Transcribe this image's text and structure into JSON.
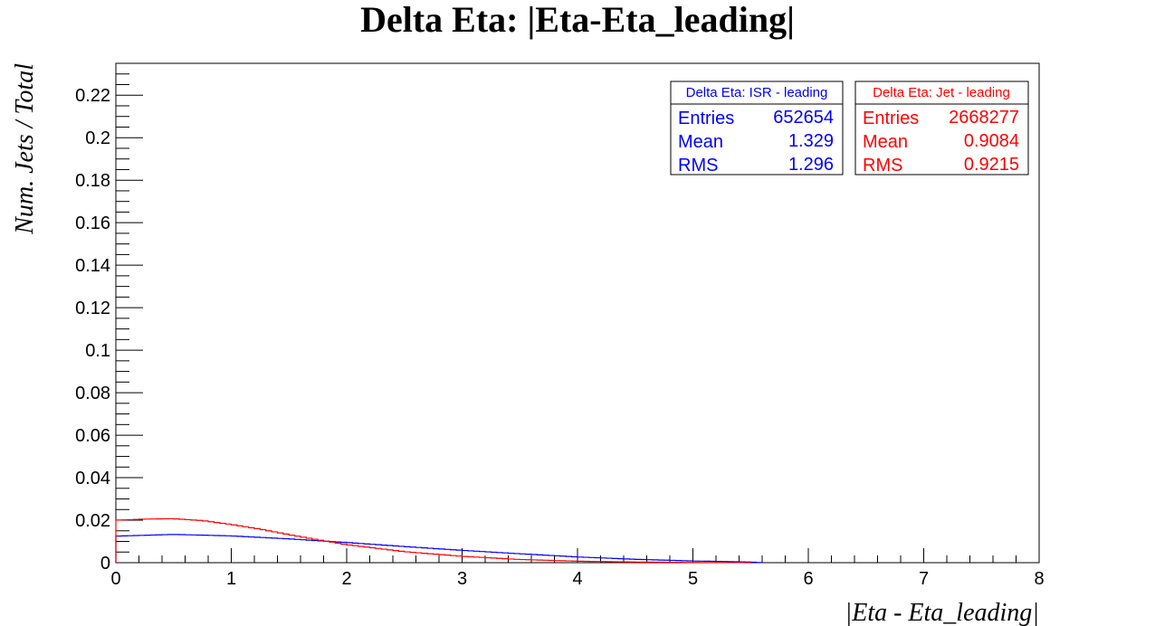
{
  "chart_data": {
    "type": "line",
    "title": "Delta Eta: |Eta-Eta_leading|",
    "xlabel": "|Eta - Eta_leading|",
    "ylabel": "Num. Jets / Total",
    "xlim": [
      0,
      8
    ],
    "ylim": [
      0,
      0.235
    ],
    "x_ticks": [
      "0",
      "1",
      "2",
      "3",
      "4",
      "5",
      "6",
      "7",
      "8"
    ],
    "y_ticks": [
      "0",
      "0.02",
      "0.04",
      "0.06",
      "0.08",
      "0.1",
      "0.12",
      "0.14",
      "0.16",
      "0.18",
      "0.2",
      "0.22"
    ],
    "bin_width": 0.05,
    "grid": false,
    "series": [
      {
        "name": "Delta Eta: ISR - leading",
        "color": "#0000ff",
        "entries_label": "Entries",
        "entries": "652654",
        "mean_label": "Mean",
        "mean": "1.329",
        "rms_label": "RMS",
        "rms": "1.296",
        "x": [
          0,
          0.5,
          1,
          1.5,
          2,
          2.5,
          3,
          3.5,
          4,
          4.5,
          5,
          5.5,
          5.6
        ],
        "y": [
          0.0125,
          0.0133,
          0.0126,
          0.0112,
          0.0095,
          0.0076,
          0.0058,
          0.0042,
          0.0027,
          0.0016,
          0.0008,
          0.0003,
          0
        ]
      },
      {
        "name": "Delta Eta: Jet - leading",
        "color": "#ff0000",
        "entries_label": "Entries",
        "entries": "2668277",
        "mean_label": "Mean",
        "mean": "0.9084",
        "rms_label": "RMS",
        "rms": "0.9215",
        "x": [
          0,
          0.25,
          0.5,
          0.75,
          1,
          1.25,
          1.5,
          1.75,
          2,
          2.5,
          3,
          3.5,
          4,
          4.5,
          5,
          5.5
        ],
        "y": [
          0.02,
          0.0205,
          0.0207,
          0.0198,
          0.018,
          0.0158,
          0.0132,
          0.0108,
          0.0085,
          0.0052,
          0.003,
          0.0015,
          0.0007,
          0.0003,
          0.0001,
          0
        ]
      }
    ]
  }
}
